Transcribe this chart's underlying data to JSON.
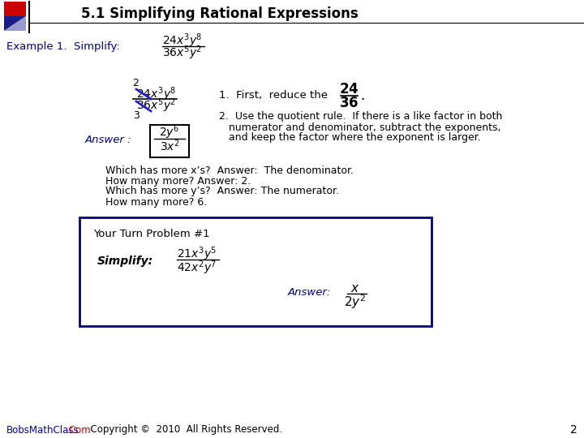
{
  "title": "5.1 Simplifying Rational Expressions",
  "background_color": "#ffffff",
  "accent_red": "#cc0000",
  "accent_blue": "#000080",
  "text_color": "#000000",
  "footer_bobs": "BobsMathClass",
  "footer_com": ".Com",
  "footer_rest": "  Copyright ©  2010  All Rights Reserved.",
  "page_number": "2",
  "example_label": "Example 1.  Simplify:",
  "step1_text": "1.  First,  reduce the",
  "step2_line1": "2.  Use the quotient rule.  If there is a like factor in both",
  "step2_line2": "numerator and denominator, subtract the exponents,",
  "step2_line3": "and keep the factor where the exponent is larger.",
  "which1": "Which has more x’s?  Answer:  The denominator.",
  "which2": "How many more? Answer: 2.",
  "which3": "Which has more y’s?  Answer: The numerator.",
  "which4": "How many more? 6.",
  "ytp": "Your Turn Problem #1",
  "simplify_label": "Simplify:",
  "answer_label": "Answer:",
  "answer_italic_color": "#000080",
  "box_edge_color": "#000080"
}
